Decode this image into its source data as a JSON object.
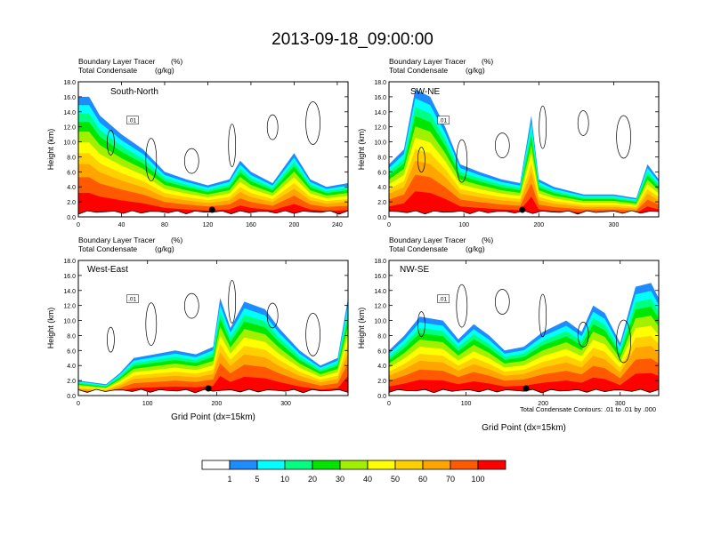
{
  "title": "2013-09-18_09:00:00",
  "footnote": "Total Condensate Contours: .01 to .01 by .000",
  "colorbar": {
    "levels": [
      "1",
      "5",
      "10",
      "20",
      "30",
      "40",
      "50",
      "60",
      "70",
      "100"
    ],
    "colors": [
      "#ffffff",
      "#1e8cff",
      "#00ffff",
      "#00ff80",
      "#00e600",
      "#a0f000",
      "#ffff00",
      "#ffd000",
      "#ffa500",
      "#ff5a00",
      "#ff0000"
    ]
  },
  "chart_data": [
    {
      "type": "heatmap",
      "label": "South-North",
      "subtitle_left_1": "Boundary Layer Tracer",
      "subtitle_unit_1": "(%)",
      "subtitle_left_2": "Total Condensate",
      "subtitle_unit_2": "(g/kg)",
      "ylabel": "Height (km)",
      "xlabel": "",
      "xlim": [
        0,
        250
      ],
      "ylim": [
        0,
        18
      ],
      "xticks": [
        "0",
        "40",
        "80",
        "120",
        "160",
        "200",
        "240"
      ],
      "xtick_values": [
        0,
        40,
        80,
        120,
        160,
        200,
        240
      ],
      "yticks": [
        "0.0",
        "2.0",
        "4.0",
        "6.0",
        "8.0",
        "10.0",
        "12.0",
        "14.0",
        "16.0",
        "18.0"
      ],
      "contour_label": ".01",
      "marker_x": 124,
      "tracer_top_km": [
        [
          0,
          16
        ],
        [
          10,
          16
        ],
        [
          20,
          13.5
        ],
        [
          40,
          11
        ],
        [
          60,
          9
        ],
        [
          80,
          6
        ],
        [
          100,
          5
        ],
        [
          120,
          4.2
        ],
        [
          140,
          5
        ],
        [
          150,
          7.5
        ],
        [
          160,
          6
        ],
        [
          180,
          4.5
        ],
        [
          200,
          8.5
        ],
        [
          215,
          5
        ],
        [
          230,
          4
        ],
        [
          250,
          4.5
        ]
      ]
    },
    {
      "type": "heatmap",
      "label": "SW-NE",
      "subtitle_left_1": "Boundary Layer Tracer",
      "subtitle_unit_1": "(%)",
      "subtitle_left_2": "Total Condensate",
      "subtitle_unit_2": "(g/kg)",
      "ylabel": "Height (km)",
      "xlabel": "",
      "xlim": [
        0,
        360
      ],
      "ylim": [
        0,
        18
      ],
      "xticks": [
        "0",
        "100",
        "200",
        "300"
      ],
      "xtick_values": [
        0,
        100,
        200,
        300
      ],
      "yticks": [
        "0.0",
        "2.0",
        "4.0",
        "6.0",
        "8.0",
        "10.0",
        "12.0",
        "14.0",
        "16.0",
        "18.0"
      ],
      "contour_label": ".01",
      "marker_x": 178,
      "tracer_top_km": [
        [
          0,
          7
        ],
        [
          20,
          9
        ],
        [
          35,
          17
        ],
        [
          55,
          16
        ],
        [
          75,
          12
        ],
        [
          95,
          7
        ],
        [
          120,
          6
        ],
        [
          150,
          5
        ],
        [
          175,
          4.5
        ],
        [
          190,
          13.5
        ],
        [
          200,
          5
        ],
        [
          220,
          4
        ],
        [
          260,
          3
        ],
        [
          300,
          3
        ],
        [
          330,
          2.5
        ],
        [
          345,
          7
        ],
        [
          360,
          5
        ]
      ]
    },
    {
      "type": "heatmap",
      "label": "West-East",
      "subtitle_left_1": "Boundary Layer Tracer",
      "subtitle_unit_1": "(%)",
      "subtitle_left_2": "Total Condensate",
      "subtitle_unit_2": "(g/kg)",
      "ylabel": "Height (km)",
      "xlabel": "Grid Point (dx=15km)",
      "xlim": [
        0,
        390
      ],
      "ylim": [
        0,
        18
      ],
      "xticks": [
        "0",
        "100",
        "200",
        "300"
      ],
      "xtick_values": [
        0,
        100,
        200,
        300
      ],
      "yticks": [
        "0.0",
        "2.0",
        "4.0",
        "6.0",
        "8.0",
        "10.0",
        "12.0",
        "14.0",
        "16.0",
        "18.0"
      ],
      "contour_label": ".01",
      "marker_x": 188,
      "tracer_top_km": [
        [
          0,
          2
        ],
        [
          40,
          1.5
        ],
        [
          60,
          3
        ],
        [
          80,
          5
        ],
        [
          110,
          5.5
        ],
        [
          140,
          6
        ],
        [
          170,
          5.5
        ],
        [
          195,
          6.5
        ],
        [
          205,
          13
        ],
        [
          220,
          9
        ],
        [
          240,
          12.5
        ],
        [
          270,
          11.5
        ],
        [
          290,
          9
        ],
        [
          320,
          6
        ],
        [
          350,
          4
        ],
        [
          375,
          5
        ],
        [
          390,
          13
        ]
      ]
    },
    {
      "type": "heatmap",
      "label": "NW-SE",
      "subtitle_left_1": "Boundary Layer Tracer",
      "subtitle_unit_1": "(%)",
      "subtitle_left_2": "Total Condensate",
      "subtitle_unit_2": "(g/kg)",
      "ylabel": "Height (km)",
      "xlabel": "Grid Point (dx=15km)",
      "xlim": [
        0,
        350
      ],
      "ylim": [
        0,
        18
      ],
      "xticks": [
        "0",
        "100",
        "200",
        "300"
      ],
      "xtick_values": [
        0,
        100,
        200,
        300
      ],
      "yticks": [
        "0.0",
        "2.0",
        "4.0",
        "6.0",
        "8.0",
        "10.0",
        "12.0",
        "14.0",
        "16.0",
        "18.0"
      ],
      "contour_label": ".01",
      "marker_x": 178,
      "tracer_top_km": [
        [
          0,
          6
        ],
        [
          20,
          8
        ],
        [
          40,
          10.5
        ],
        [
          70,
          10
        ],
        [
          90,
          7.5
        ],
        [
          110,
          9.5
        ],
        [
          130,
          8
        ],
        [
          150,
          6
        ],
        [
          175,
          6.5
        ],
        [
          200,
          8.5
        ],
        [
          230,
          10
        ],
        [
          250,
          8.5
        ],
        [
          265,
          12
        ],
        [
          280,
          11
        ],
        [
          300,
          7
        ],
        [
          320,
          14.5
        ],
        [
          340,
          15
        ],
        [
          350,
          13
        ]
      ]
    }
  ]
}
